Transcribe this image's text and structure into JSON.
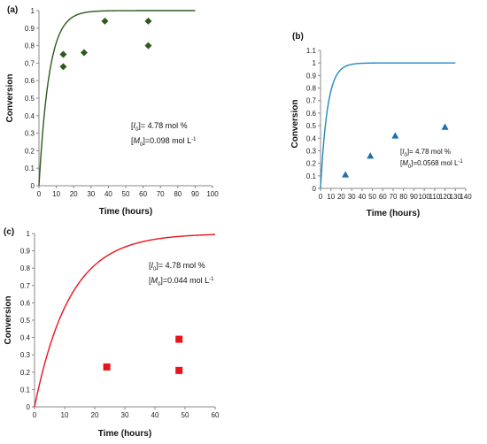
{
  "chart_data": [
    {
      "panel_label": "(a)",
      "type": "line+scatter",
      "xlabel": "Time (hours)",
      "ylabel": "Conversion",
      "xlim": [
        0,
        100
      ],
      "ylim": [
        0,
        1
      ],
      "xticks": [
        "0",
        "10",
        "20",
        "30",
        "40",
        "50",
        "60",
        "70",
        "80",
        "90",
        "100"
      ],
      "yticks": [
        "0",
        "0.1",
        "0.2",
        "0.3",
        "0.4",
        "0.5",
        "0.6",
        "0.7",
        "0.8",
        "0.9",
        "1"
      ],
      "line_color": "#2e5a1c",
      "marker_color": "#2e5a1c",
      "marker": "diamond",
      "curve_rate": 0.17,
      "curve_x_max": 90,
      "series": [
        {
          "x": [
            14,
            14,
            26,
            38,
            63,
            63
          ],
          "y": [
            0.75,
            0.68,
            0.76,
            0.94,
            0.94,
            0.8
          ]
        }
      ],
      "annotation": {
        "line1": "[I0]= 4.78 mol %",
        "line2": "[M0]=0.098 mol L-1"
      }
    },
    {
      "panel_label": "(b)",
      "type": "line+scatter",
      "xlabel": "Time (hours)",
      "ylabel": "Conversion",
      "xlim": [
        0,
        140
      ],
      "ylim": [
        0,
        1.1
      ],
      "xticks": [
        "0",
        "10",
        "20",
        "30",
        "40",
        "50",
        "60",
        "70",
        "80",
        "90",
        "100",
        "110",
        "120",
        "130",
        "140"
      ],
      "yticks": [
        "0",
        "0.1",
        "0.2",
        "0.3",
        "0.4",
        "0.5",
        "0.6",
        "0.7",
        "0.8",
        "0.9",
        "1",
        "1.1"
      ],
      "line_color": "#1f8ac0",
      "marker_color": "#1f6fb0",
      "marker": "triangle",
      "curve_rate": 0.15,
      "curve_x_max": 130,
      "series": [
        {
          "x": [
            24,
            48,
            72,
            120
          ],
          "y": [
            0.11,
            0.26,
            0.42,
            0.49
          ]
        }
      ],
      "annotation": {
        "line1": "[I0]= 4.78 mol %",
        "line2": "[M0]=0.0568 mol L-1"
      }
    },
    {
      "panel_label": "(c)",
      "type": "line+scatter",
      "xlabel": "Time (hours)",
      "ylabel": "Conversion",
      "xlim": [
        0,
        60
      ],
      "ylim": [
        0,
        1
      ],
      "xticks": [
        "0",
        "10",
        "20",
        "30",
        "40",
        "50",
        "60"
      ],
      "yticks": [
        "0",
        "0.1",
        "0.2",
        "0.3",
        "0.4",
        "0.5",
        "0.6",
        "0.7",
        "0.8",
        "0.9",
        "1"
      ],
      "line_color": "#e8141c",
      "marker_color": "#e8141c",
      "marker": "square",
      "curve_rate": 0.085,
      "curve_x_max": 60,
      "series": [
        {
          "x": [
            24,
            48,
            48
          ],
          "y": [
            0.23,
            0.39,
            0.21
          ]
        }
      ],
      "annotation": {
        "line1": "[I0]= 4.78 mol %",
        "line2": "[M0]=0.044 mol L-1"
      }
    }
  ]
}
